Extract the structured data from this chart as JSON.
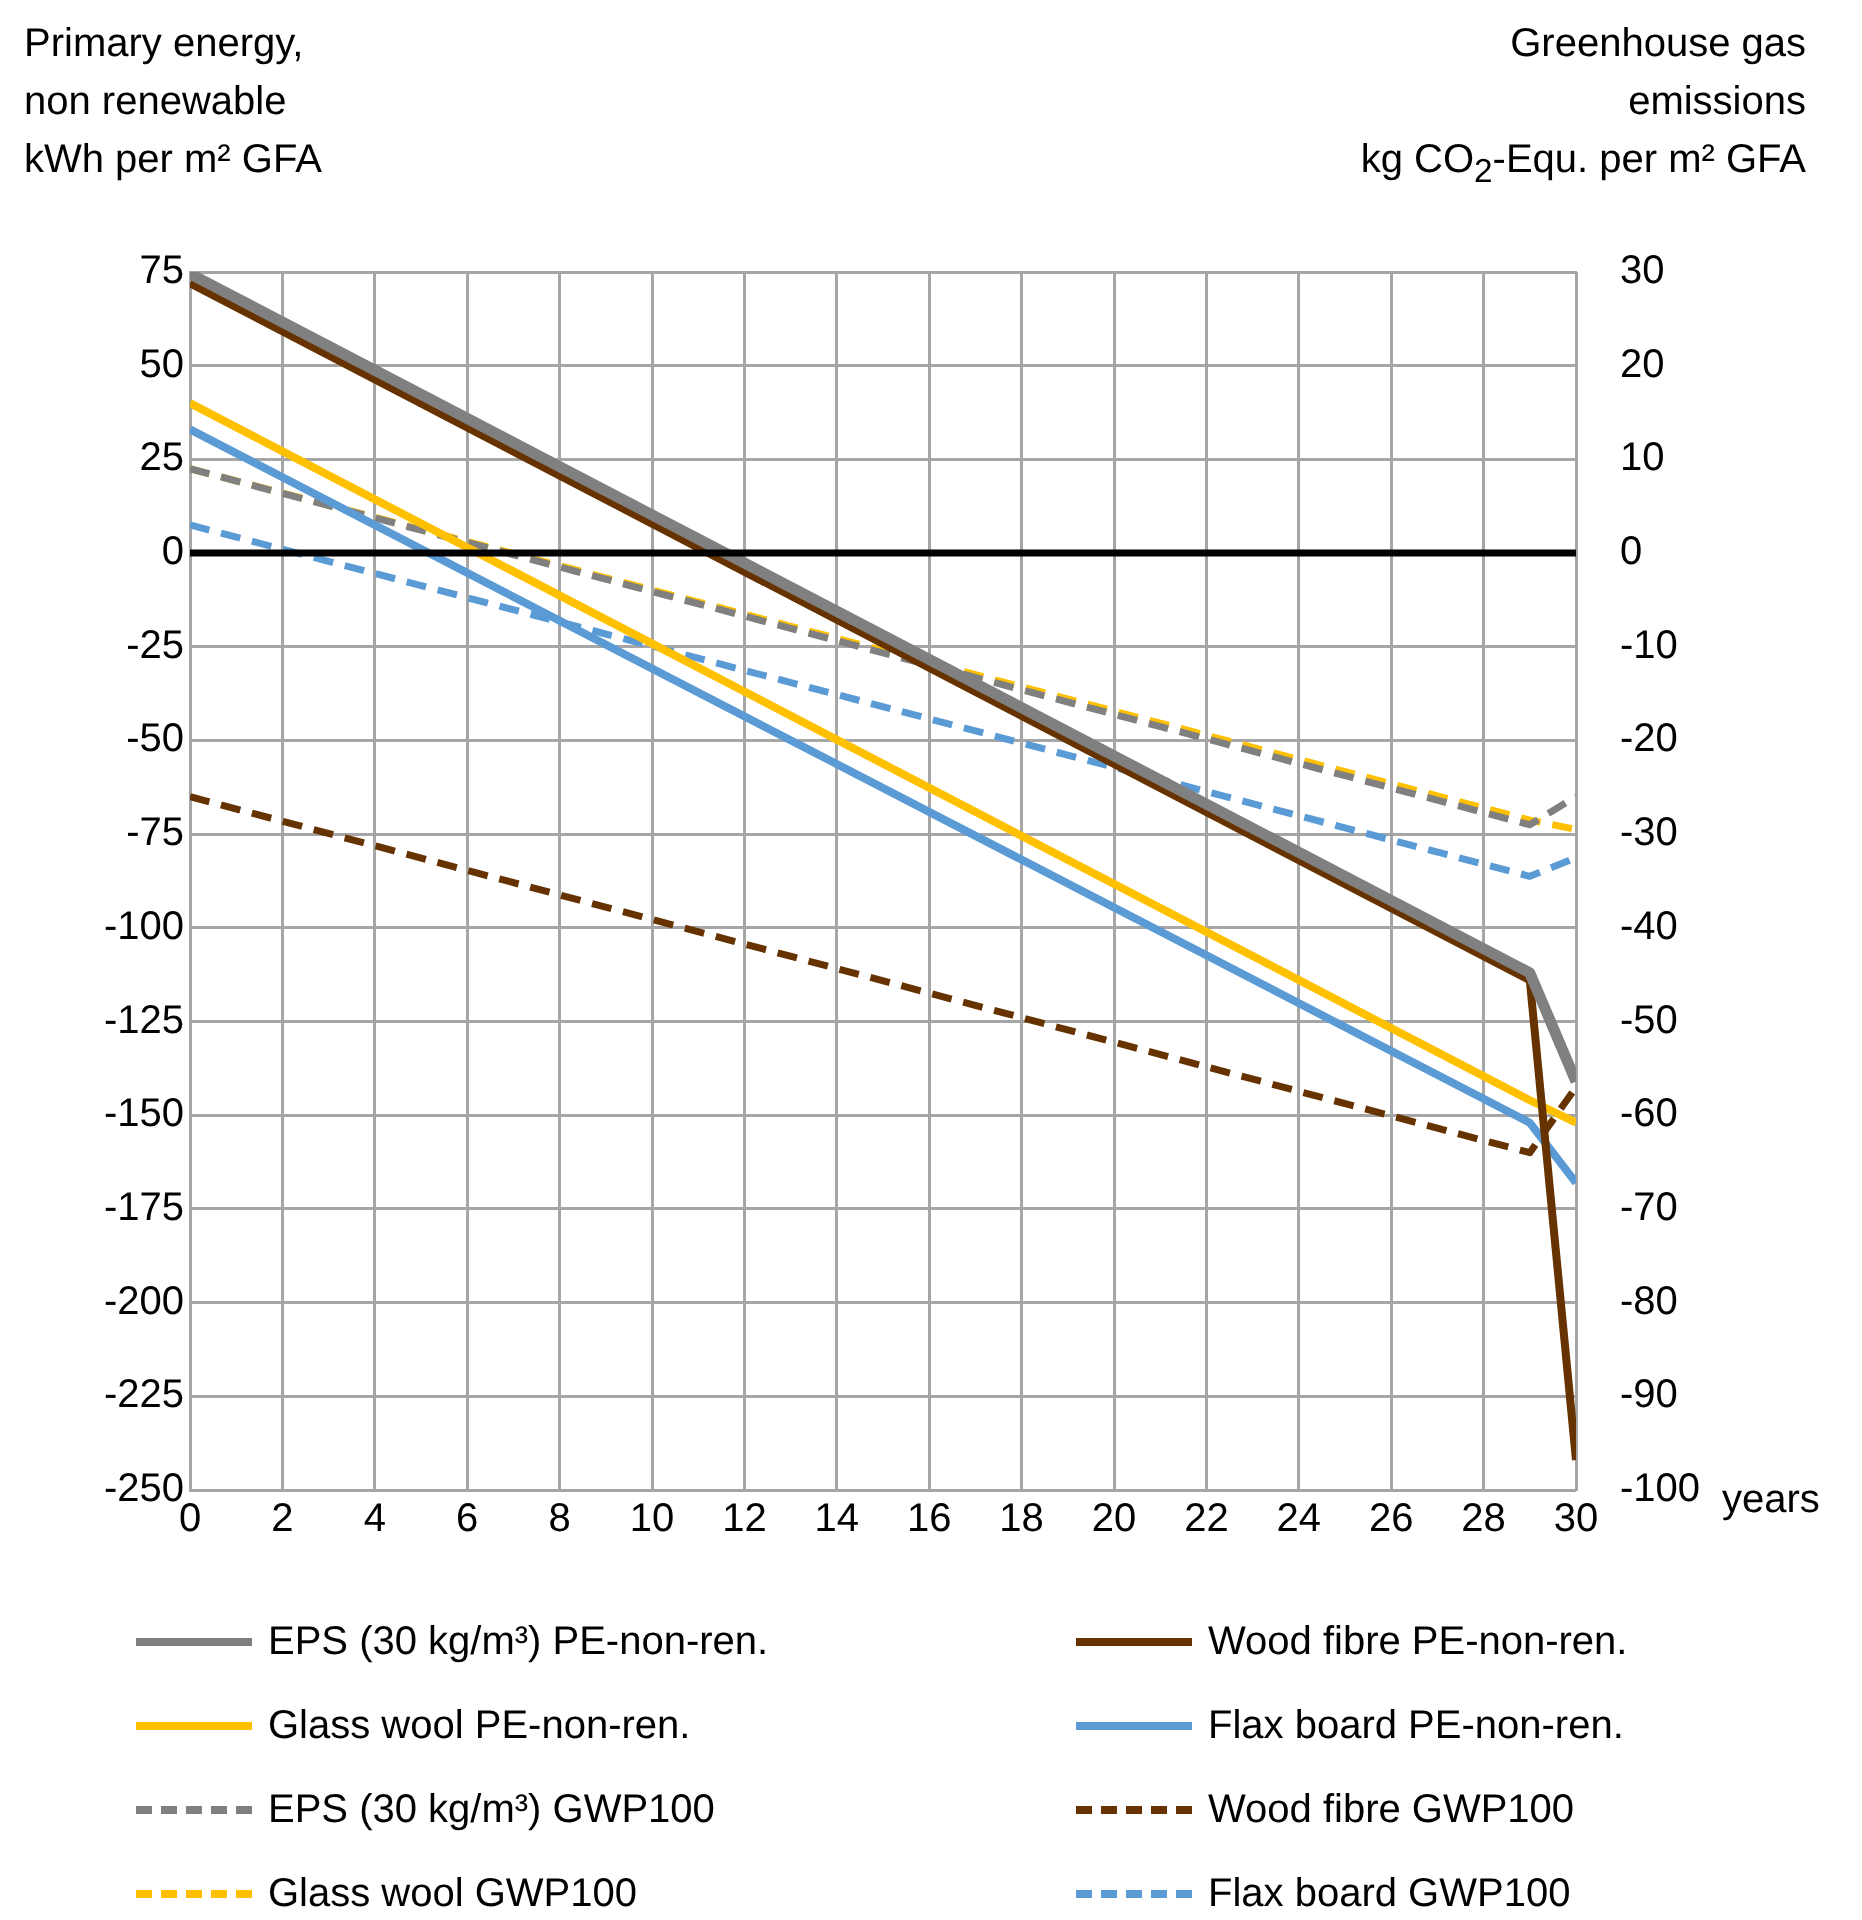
{
  "chart_data": {
    "type": "line",
    "ylabel": "Primary energy,\nnon renewable\nkWh per m² GFA",
    "y2label": "Greenhouse gas\nemissions\nkg CO$_{2}$-Equ. per m² GFA",
    "xlabel": "years",
    "xlim": [
      0,
      30
    ],
    "xticks": [
      0,
      2,
      4,
      6,
      8,
      10,
      12,
      14,
      16,
      18,
      20,
      22,
      24,
      26,
      28,
      30
    ],
    "ylim": [
      -250,
      75
    ],
    "yticks": [
      -250,
      -225,
      -200,
      -175,
      -150,
      -125,
      -100,
      -75,
      -50,
      -25,
      0,
      25,
      50,
      75
    ],
    "y2lim": [
      -100,
      30
    ],
    "y2ticks": [
      -100,
      -90,
      -80,
      -70,
      -60,
      -50,
      -40,
      -30,
      -20,
      -10,
      0,
      10,
      20,
      30
    ],
    "grid": true,
    "legend": "bottom",
    "marker": "none",
    "ref_lines": [
      {
        "axis": "y",
        "value": 0,
        "color": "#000000"
      }
    ],
    "series": [
      {
        "name": "EPS (30 kg/m³) PE-non-ren.",
        "color": "#808080",
        "x": [
          0,
          29,
          30
        ],
        "values": [
          74.5,
          -112,
          -141
        ],
        "line_style": "solid"
      },
      {
        "name": "Wood fibre PE-non-ren.",
        "color": "#663300",
        "x": [
          0,
          29,
          30
        ],
        "values": [
          72,
          -114,
          -242
        ],
        "line_style": "solid"
      },
      {
        "name": "Glass wool PE-non-ren.",
        "color": "#ffc000",
        "x": [
          0,
          29,
          30
        ],
        "values": [
          40,
          -146,
          -152
        ],
        "line_style": "solid"
      },
      {
        "name": "Flax board PE-non-ren.",
        "color": "#5b9bd5",
        "x": [
          0,
          29,
          30
        ],
        "values": [
          33,
          -152,
          -168
        ],
        "line_style": "solid"
      },
      {
        "name": "EPS (30 kg/m³) GWP100",
        "color": "#808080",
        "x": [
          0,
          29,
          30
        ],
        "values": [
          9,
          -29,
          -26
        ],
        "line_style": "dashed",
        "axis": "y2"
      },
      {
        "name": "Wood fibre GWP100",
        "color": "#663300",
        "x": [
          0,
          29,
          30
        ],
        "values": [
          -26,
          -64,
          -57
        ],
        "line_style": "dashed",
        "axis": "y2"
      },
      {
        "name": "Glass wool GWP100",
        "color": "#ffc000",
        "x": [
          0,
          29,
          30
        ],
        "values": [
          9,
          -28.5,
          -29.5
        ],
        "line_style": "dashed",
        "axis": "y2"
      },
      {
        "name": "Flax board GWP100",
        "color": "#5b9bd5",
        "x": [
          0,
          29,
          30
        ],
        "values": [
          3,
          -34.5,
          -32.5
        ],
        "line_style": "dashed",
        "axis": "y2"
      }
    ]
  }
}
